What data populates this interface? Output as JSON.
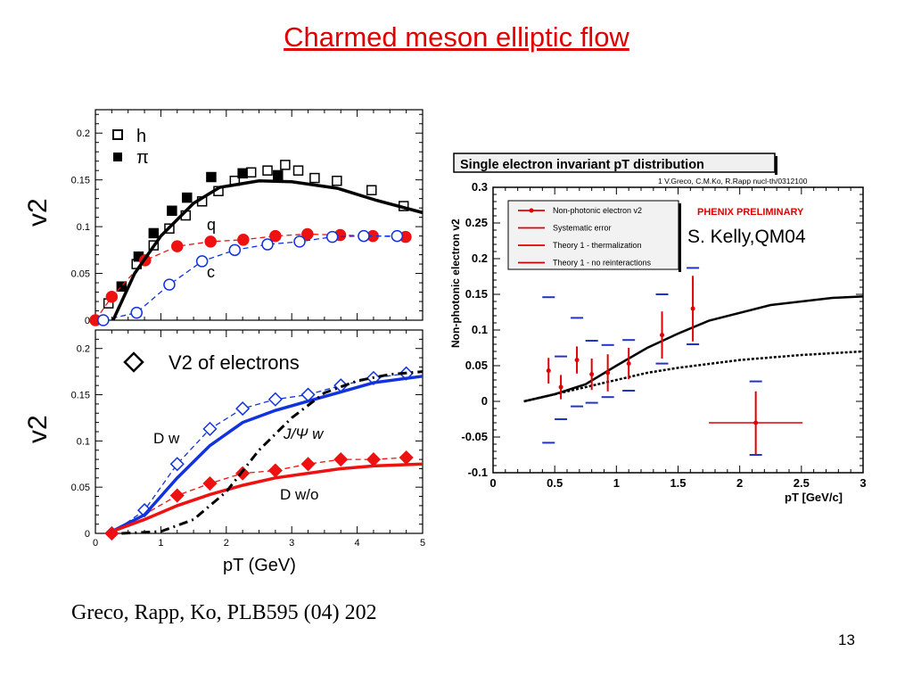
{
  "slide": {
    "title": "Charmed meson elliptic flow",
    "citation": "Greco, Rapp, Ko, PLB595 (04) 202",
    "page_number": "13"
  },
  "chart_data": [
    {
      "type": "scatter",
      "panel": "top-left",
      "xlabel": "",
      "ylabel": "v2",
      "xlim": [
        0,
        5
      ],
      "ylim": [
        0,
        0.225
      ],
      "yticks": [
        "0",
        "0.05",
        "0.1",
        "0.15",
        "0.2"
      ],
      "yticks_values": [
        0,
        0.05,
        0.1,
        0.15,
        0.2
      ],
      "legend": {
        "placement": "top-left",
        "entries": [
          "h",
          "π"
        ]
      },
      "annotations": [
        "q",
        "c"
      ],
      "series": [
        {
          "name": "h",
          "marker": "open-square",
          "color": "#000000",
          "x": [
            0.2,
            0.63,
            0.89,
            1.13,
            1.38,
            1.63,
            1.88,
            2.13,
            2.38,
            2.63,
            2.9,
            3.1,
            3.35,
            3.69,
            4.22,
            4.71
          ],
          "y": [
            0.018,
            0.06,
            0.08,
            0.098,
            0.112,
            0.127,
            0.138,
            0.149,
            0.158,
            0.16,
            0.166,
            0.16,
            0.152,
            0.149,
            0.139,
            0.122
          ]
        },
        {
          "name": "π",
          "marker": "filled-square",
          "color": "#000000",
          "x": [
            0.4,
            0.66,
            0.89,
            1.17,
            1.4,
            1.77,
            2.25,
            2.79
          ],
          "y": [
            0.036,
            0.068,
            0.093,
            0.117,
            0.131,
            0.153,
            0.157,
            0.155
          ]
        },
        {
          "name": "q",
          "marker": "filled-circle",
          "line": "dashed",
          "color": "#ee1111",
          "x": [
            0,
            0.25,
            0.76,
            1.25,
            1.76,
            2.26,
            2.75,
            3.24,
            3.74,
            4.24,
            4.74
          ],
          "y": [
            0,
            0.025,
            0.064,
            0.079,
            0.084,
            0.086,
            0.09,
            0.092,
            0.091,
            0.09,
            0.089
          ]
        },
        {
          "name": "c",
          "marker": "open-circle",
          "line": "dashed",
          "color": "#1133dd",
          "x": [
            0.12,
            0.63,
            1.13,
            1.63,
            2.13,
            2.63,
            3.12,
            3.62,
            4.1,
            4.61
          ],
          "y": [
            0,
            0.008,
            0.038,
            0.063,
            0.075,
            0.081,
            0.084,
            0.089,
            0.09,
            0.09
          ]
        },
        {
          "name": "hydro",
          "line": "solid",
          "color": "#000000",
          "x": [
            0.27,
            0.6,
            1.0,
            1.5,
            1.9,
            2.5,
            3.0,
            3.7,
            4.3,
            5.0
          ],
          "y": [
            0,
            0.05,
            0.09,
            0.125,
            0.142,
            0.149,
            0.148,
            0.141,
            0.128,
            0.115
          ]
        }
      ]
    },
    {
      "type": "line",
      "panel": "bottom-left",
      "xlabel": "pT (GeV)",
      "ylabel": "v2",
      "xlim": [
        0,
        5
      ],
      "ylim": [
        0,
        0.22
      ],
      "xticks": [
        "0",
        "1",
        "2",
        "3",
        "4",
        "5"
      ],
      "xticks_values": [
        0,
        1,
        2,
        3,
        4,
        5
      ],
      "yticks": [
        "0",
        "0.05",
        "0.1",
        "0.15",
        "0.2"
      ],
      "yticks_values": [
        0,
        0.05,
        0.1,
        0.15,
        0.2
      ],
      "legend": {
        "placement": "top-left",
        "entries": [
          "V2 of electrons"
        ]
      },
      "annotations": [
        "D w",
        "J/Ψ w",
        "D w/o"
      ],
      "series": [
        {
          "name": "electrons D w",
          "marker": "open-diamond",
          "line": "dashed",
          "color": "#1133dd",
          "x": [
            0.25,
            0.75,
            1.25,
            1.75,
            2.25,
            2.75,
            3.25,
            3.75,
            4.25,
            4.75
          ],
          "y": [
            0,
            0.025,
            0.075,
            0.113,
            0.135,
            0.145,
            0.15,
            0.16,
            0.168,
            0.173
          ]
        },
        {
          "name": "electrons D w/o",
          "marker": "filled-diamond",
          "line": "dashed",
          "color": "#ee1111",
          "x": [
            0.25,
            1.25,
            1.75,
            2.25,
            2.75,
            3.25,
            3.75,
            4.25,
            4.75
          ],
          "y": [
            0,
            0.041,
            0.054,
            0.065,
            0.068,
            0.075,
            0.08,
            0.08,
            0.082
          ]
        },
        {
          "name": "D w",
          "line": "solid",
          "color": "#1133dd",
          "x": [
            0.25,
            0.75,
            1.25,
            1.75,
            2.25,
            2.75,
            3.5,
            4.25,
            5.0
          ],
          "y": [
            0.002,
            0.02,
            0.06,
            0.095,
            0.12,
            0.133,
            0.148,
            0.163,
            0.17
          ]
        },
        {
          "name": "D w/o",
          "line": "solid",
          "color": "#ee1111",
          "x": [
            0.25,
            0.75,
            1.25,
            1.75,
            2.25,
            2.75,
            3.25,
            3.75,
            4.25,
            5.0
          ],
          "y": [
            0.002,
            0.015,
            0.03,
            0.042,
            0.052,
            0.06,
            0.065,
            0.07,
            0.073,
            0.075
          ]
        },
        {
          "name": "J/Ψ w",
          "line": "dash-dot",
          "color": "#000000",
          "x": [
            0.4,
            1.0,
            1.5,
            2.0,
            2.5,
            3.0,
            3.5,
            4.0,
            4.5,
            5.0
          ],
          "y": [
            0,
            0.002,
            0.015,
            0.045,
            0.09,
            0.125,
            0.152,
            0.165,
            0.172,
            0.175
          ]
        }
      ]
    },
    {
      "type": "scatter",
      "panel": "right",
      "title": "Single electron invariant pT distribution",
      "reference": "1 V.Greco, C.M.Ko, R.Rapp nucl-th/0312100",
      "xlabel": "pT [GeV/c]",
      "ylabel": "Non-photonic electron v2",
      "xlim": [
        0,
        3
      ],
      "ylim": [
        -0.1,
        0.3
      ],
      "xticks": [
        "0",
        "0.5",
        "1",
        "1.5",
        "2",
        "2.5",
        "3"
      ],
      "xticks_values": [
        0,
        0.5,
        1,
        1.5,
        2,
        2.5,
        3
      ],
      "yticks": [
        "-0.1",
        "-0.05",
        "0",
        "0.05",
        "0.1",
        "0.15",
        "0.2",
        "0.25",
        "0.3"
      ],
      "yticks_values": [
        -0.1,
        -0.05,
        0,
        0.05,
        0.1,
        0.15,
        0.2,
        0.25,
        0.3
      ],
      "legend": {
        "placement": "top-left",
        "entries": [
          "Non-photonic electron v2",
          "Systematic error",
          "Theory 1 - thermalization",
          "Theory 1 - no reinteractions"
        ]
      },
      "annotations": [
        "PHENIX PRELIMINARY",
        "S. Kelly,QM04"
      ],
      "points": {
        "x": [
          0.45,
          0.55,
          0.68,
          0.8,
          0.93,
          1.1,
          1.37,
          1.62,
          2.13
        ],
        "y": [
          0.043,
          0.02,
          0.058,
          0.038,
          0.04,
          0.053,
          0.093,
          0.13,
          -0.03
        ],
        "yerr": [
          0.018,
          0.017,
          0.019,
          0.022,
          0.026,
          0.022,
          0.033,
          0.046,
          0.044
        ],
        "xerr": [
          0,
          0,
          0,
          0,
          0,
          0,
          0,
          0,
          0.38
        ],
        "sys_upper": [
          0.146,
          0.063,
          0.117,
          0.085,
          0.079,
          0.086,
          0.15,
          0.187,
          0.028
        ],
        "sys_lower": [
          -0.058,
          -0.025,
          -0.007,
          -0.002,
          0.006,
          0.015,
          0.053,
          0.08,
          -0.075
        ]
      },
      "series": [
        {
          "name": "Theory - thermalization",
          "line": "solid",
          "color": "#000000",
          "x": [
            0.25,
            0.5,
            0.75,
            1.0,
            1.25,
            1.5,
            1.75,
            2.25,
            2.75,
            3.0
          ],
          "y": [
            0,
            0.01,
            0.024,
            0.05,
            0.075,
            0.095,
            0.113,
            0.135,
            0.145,
            0.147
          ]
        },
        {
          "name": "Theory - no reinteractions",
          "line": "dotted",
          "color": "#000000",
          "x": [
            0.25,
            0.5,
            0.75,
            1.0,
            1.25,
            1.5,
            2.0,
            2.5,
            3.0
          ],
          "y": [
            0,
            0.01,
            0.02,
            0.03,
            0.04,
            0.047,
            0.058,
            0.065,
            0.07
          ]
        }
      ],
      "colors": {
        "data": "#e00000",
        "systematic": "#2233cc",
        "phenix": "#e00000"
      }
    }
  ]
}
